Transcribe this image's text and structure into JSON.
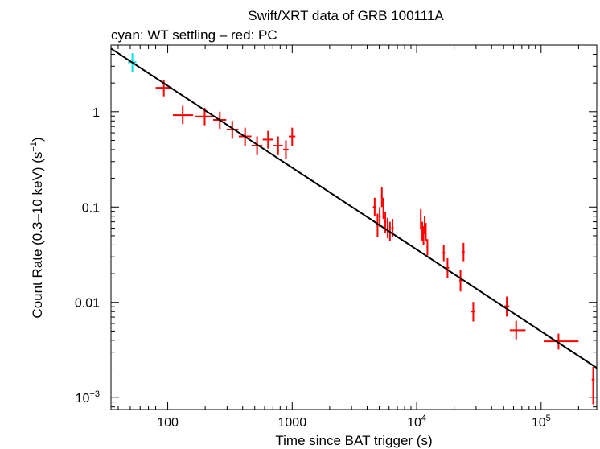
{
  "chart_data": {
    "type": "scatter",
    "title": "Swift/XRT data of GRB 100111A",
    "subtitle": "cyan: WT settling – red: PC",
    "xlabel": "Time since BAT trigger (s)",
    "ylabel_main": "Count Rate (0.3–10 keV) (s",
    "ylabel_sup": "−1",
    "ylabel_close": ")",
    "x_scale": "log",
    "y_scale": "log",
    "xlim": [
      35,
      280000
    ],
    "ylim": [
      0.00075,
      5.0
    ],
    "x_ticks": [
      {
        "value": 100,
        "base": "100",
        "sup": ""
      },
      {
        "value": 1000,
        "base": "1000",
        "sup": ""
      },
      {
        "value": 10000,
        "base": "10",
        "sup": "4"
      },
      {
        "value": 100000,
        "base": "10",
        "sup": "5"
      }
    ],
    "y_ticks": [
      {
        "value": 1,
        "base": "1",
        "sup": ""
      },
      {
        "value": 0.1,
        "base": "0.1",
        "sup": ""
      },
      {
        "value": 0.01,
        "base": "0.01",
        "sup": ""
      },
      {
        "value": 0.001,
        "base": "10",
        "sup": "−3"
      }
    ],
    "colors": {
      "wt": "#00e5e5",
      "pc": "#ff0000",
      "model": "#000000"
    },
    "model_line": {
      "x": [
        35,
        280000
      ],
      "y": [
        4.6,
        0.00205
      ]
    },
    "series": [
      {
        "name": "WT settling",
        "color": "#00e5e5",
        "points": [
          {
            "x": 52,
            "y": 3.3,
            "xlo": 48,
            "xhi": 56,
            "ylo": 2.6,
            "yhi": 4.1
          }
        ]
      },
      {
        "name": "PC",
        "color": "#ff0000",
        "points": [
          {
            "x": 93,
            "y": 1.78,
            "xlo": 80,
            "xhi": 108,
            "ylo": 1.45,
            "yhi": 2.15
          },
          {
            "x": 132,
            "y": 0.92,
            "xlo": 110,
            "xhi": 160,
            "ylo": 0.74,
            "yhi": 1.15
          },
          {
            "x": 198,
            "y": 0.89,
            "xlo": 165,
            "xhi": 230,
            "ylo": 0.72,
            "yhi": 1.1
          },
          {
            "x": 262,
            "y": 0.82,
            "xlo": 232,
            "xhi": 295,
            "ylo": 0.66,
            "yhi": 1.0
          },
          {
            "x": 330,
            "y": 0.65,
            "xlo": 297,
            "xhi": 370,
            "ylo": 0.52,
            "yhi": 0.8
          },
          {
            "x": 418,
            "y": 0.55,
            "xlo": 372,
            "xhi": 470,
            "ylo": 0.44,
            "yhi": 0.68
          },
          {
            "x": 522,
            "y": 0.44,
            "xlo": 472,
            "xhi": 575,
            "ylo": 0.35,
            "yhi": 0.55
          },
          {
            "x": 640,
            "y": 0.51,
            "xlo": 580,
            "xhi": 700,
            "ylo": 0.41,
            "yhi": 0.63
          },
          {
            "x": 770,
            "y": 0.44,
            "xlo": 705,
            "xhi": 840,
            "ylo": 0.35,
            "yhi": 0.55
          },
          {
            "x": 890,
            "y": 0.4,
            "xlo": 845,
            "xhi": 935,
            "ylo": 0.32,
            "yhi": 0.5
          },
          {
            "x": 1000,
            "y": 0.55,
            "xlo": 940,
            "xhi": 1060,
            "ylo": 0.44,
            "yhi": 0.68
          },
          {
            "x": 4600,
            "y": 0.1,
            "xlo": 4450,
            "xhi": 4750,
            "ylo": 0.08,
            "yhi": 0.125
          },
          {
            "x": 4850,
            "y": 0.065,
            "xlo": 4760,
            "xhi": 4940,
            "ylo": 0.048,
            "yhi": 0.085
          },
          {
            "x": 5050,
            "y": 0.08,
            "xlo": 4960,
            "xhi": 5140,
            "ylo": 0.062,
            "yhi": 0.1
          },
          {
            "x": 5250,
            "y": 0.13,
            "xlo": 5160,
            "xhi": 5340,
            "ylo": 0.1,
            "yhi": 0.16
          },
          {
            "x": 5400,
            "y": 0.1,
            "xlo": 5350,
            "xhi": 5450,
            "ylo": 0.075,
            "yhi": 0.125
          },
          {
            "x": 5600,
            "y": 0.07,
            "xlo": 5500,
            "xhi": 5700,
            "ylo": 0.054,
            "yhi": 0.088
          },
          {
            "x": 5850,
            "y": 0.06,
            "xlo": 5750,
            "xhi": 5950,
            "ylo": 0.047,
            "yhi": 0.077
          },
          {
            "x": 6100,
            "y": 0.055,
            "xlo": 6000,
            "xhi": 6200,
            "ylo": 0.044,
            "yhi": 0.07
          },
          {
            "x": 6400,
            "y": 0.06,
            "xlo": 6250,
            "xhi": 6550,
            "ylo": 0.048,
            "yhi": 0.075
          },
          {
            "x": 10800,
            "y": 0.075,
            "xlo": 10650,
            "xhi": 10950,
            "ylo": 0.058,
            "yhi": 0.095
          },
          {
            "x": 11100,
            "y": 0.055,
            "xlo": 10980,
            "xhi": 11220,
            "ylo": 0.044,
            "yhi": 0.07
          },
          {
            "x": 11350,
            "y": 0.05,
            "xlo": 11250,
            "xhi": 11450,
            "ylo": 0.04,
            "yhi": 0.063
          },
          {
            "x": 11600,
            "y": 0.065,
            "xlo": 11480,
            "xhi": 11720,
            "ylo": 0.052,
            "yhi": 0.08
          },
          {
            "x": 11850,
            "y": 0.055,
            "xlo": 11750,
            "xhi": 11950,
            "ylo": 0.044,
            "yhi": 0.068
          },
          {
            "x": 12200,
            "y": 0.038,
            "xlo": 12000,
            "xhi": 12400,
            "ylo": 0.031,
            "yhi": 0.046
          },
          {
            "x": 16500,
            "y": 0.033,
            "xlo": 16100,
            "xhi": 16900,
            "ylo": 0.027,
            "yhi": 0.04
          },
          {
            "x": 17700,
            "y": 0.023,
            "xlo": 17200,
            "xhi": 18200,
            "ylo": 0.018,
            "yhi": 0.029
          },
          {
            "x": 22500,
            "y": 0.017,
            "xlo": 22000,
            "xhi": 23000,
            "ylo": 0.013,
            "yhi": 0.022
          },
          {
            "x": 23800,
            "y": 0.034,
            "xlo": 23300,
            "xhi": 24300,
            "ylo": 0.027,
            "yhi": 0.042
          },
          {
            "x": 28500,
            "y": 0.008,
            "xlo": 27500,
            "xhi": 29500,
            "ylo": 0.0063,
            "yhi": 0.0101
          },
          {
            "x": 53000,
            "y": 0.0091,
            "xlo": 50500,
            "xhi": 55500,
            "ylo": 0.0071,
            "yhi": 0.0115
          },
          {
            "x": 63000,
            "y": 0.0051,
            "xlo": 56000,
            "xhi": 75000,
            "ylo": 0.0041,
            "yhi": 0.0064
          },
          {
            "x": 138000,
            "y": 0.0039,
            "xlo": 105000,
            "xhi": 200000,
            "ylo": 0.0032,
            "yhi": 0.0047
          },
          {
            "x": 262000,
            "y": 0.00155,
            "xlo": 255000,
            "xhi": 269000,
            "ylo": 0.00085,
            "yhi": 0.0021
          }
        ]
      }
    ]
  }
}
